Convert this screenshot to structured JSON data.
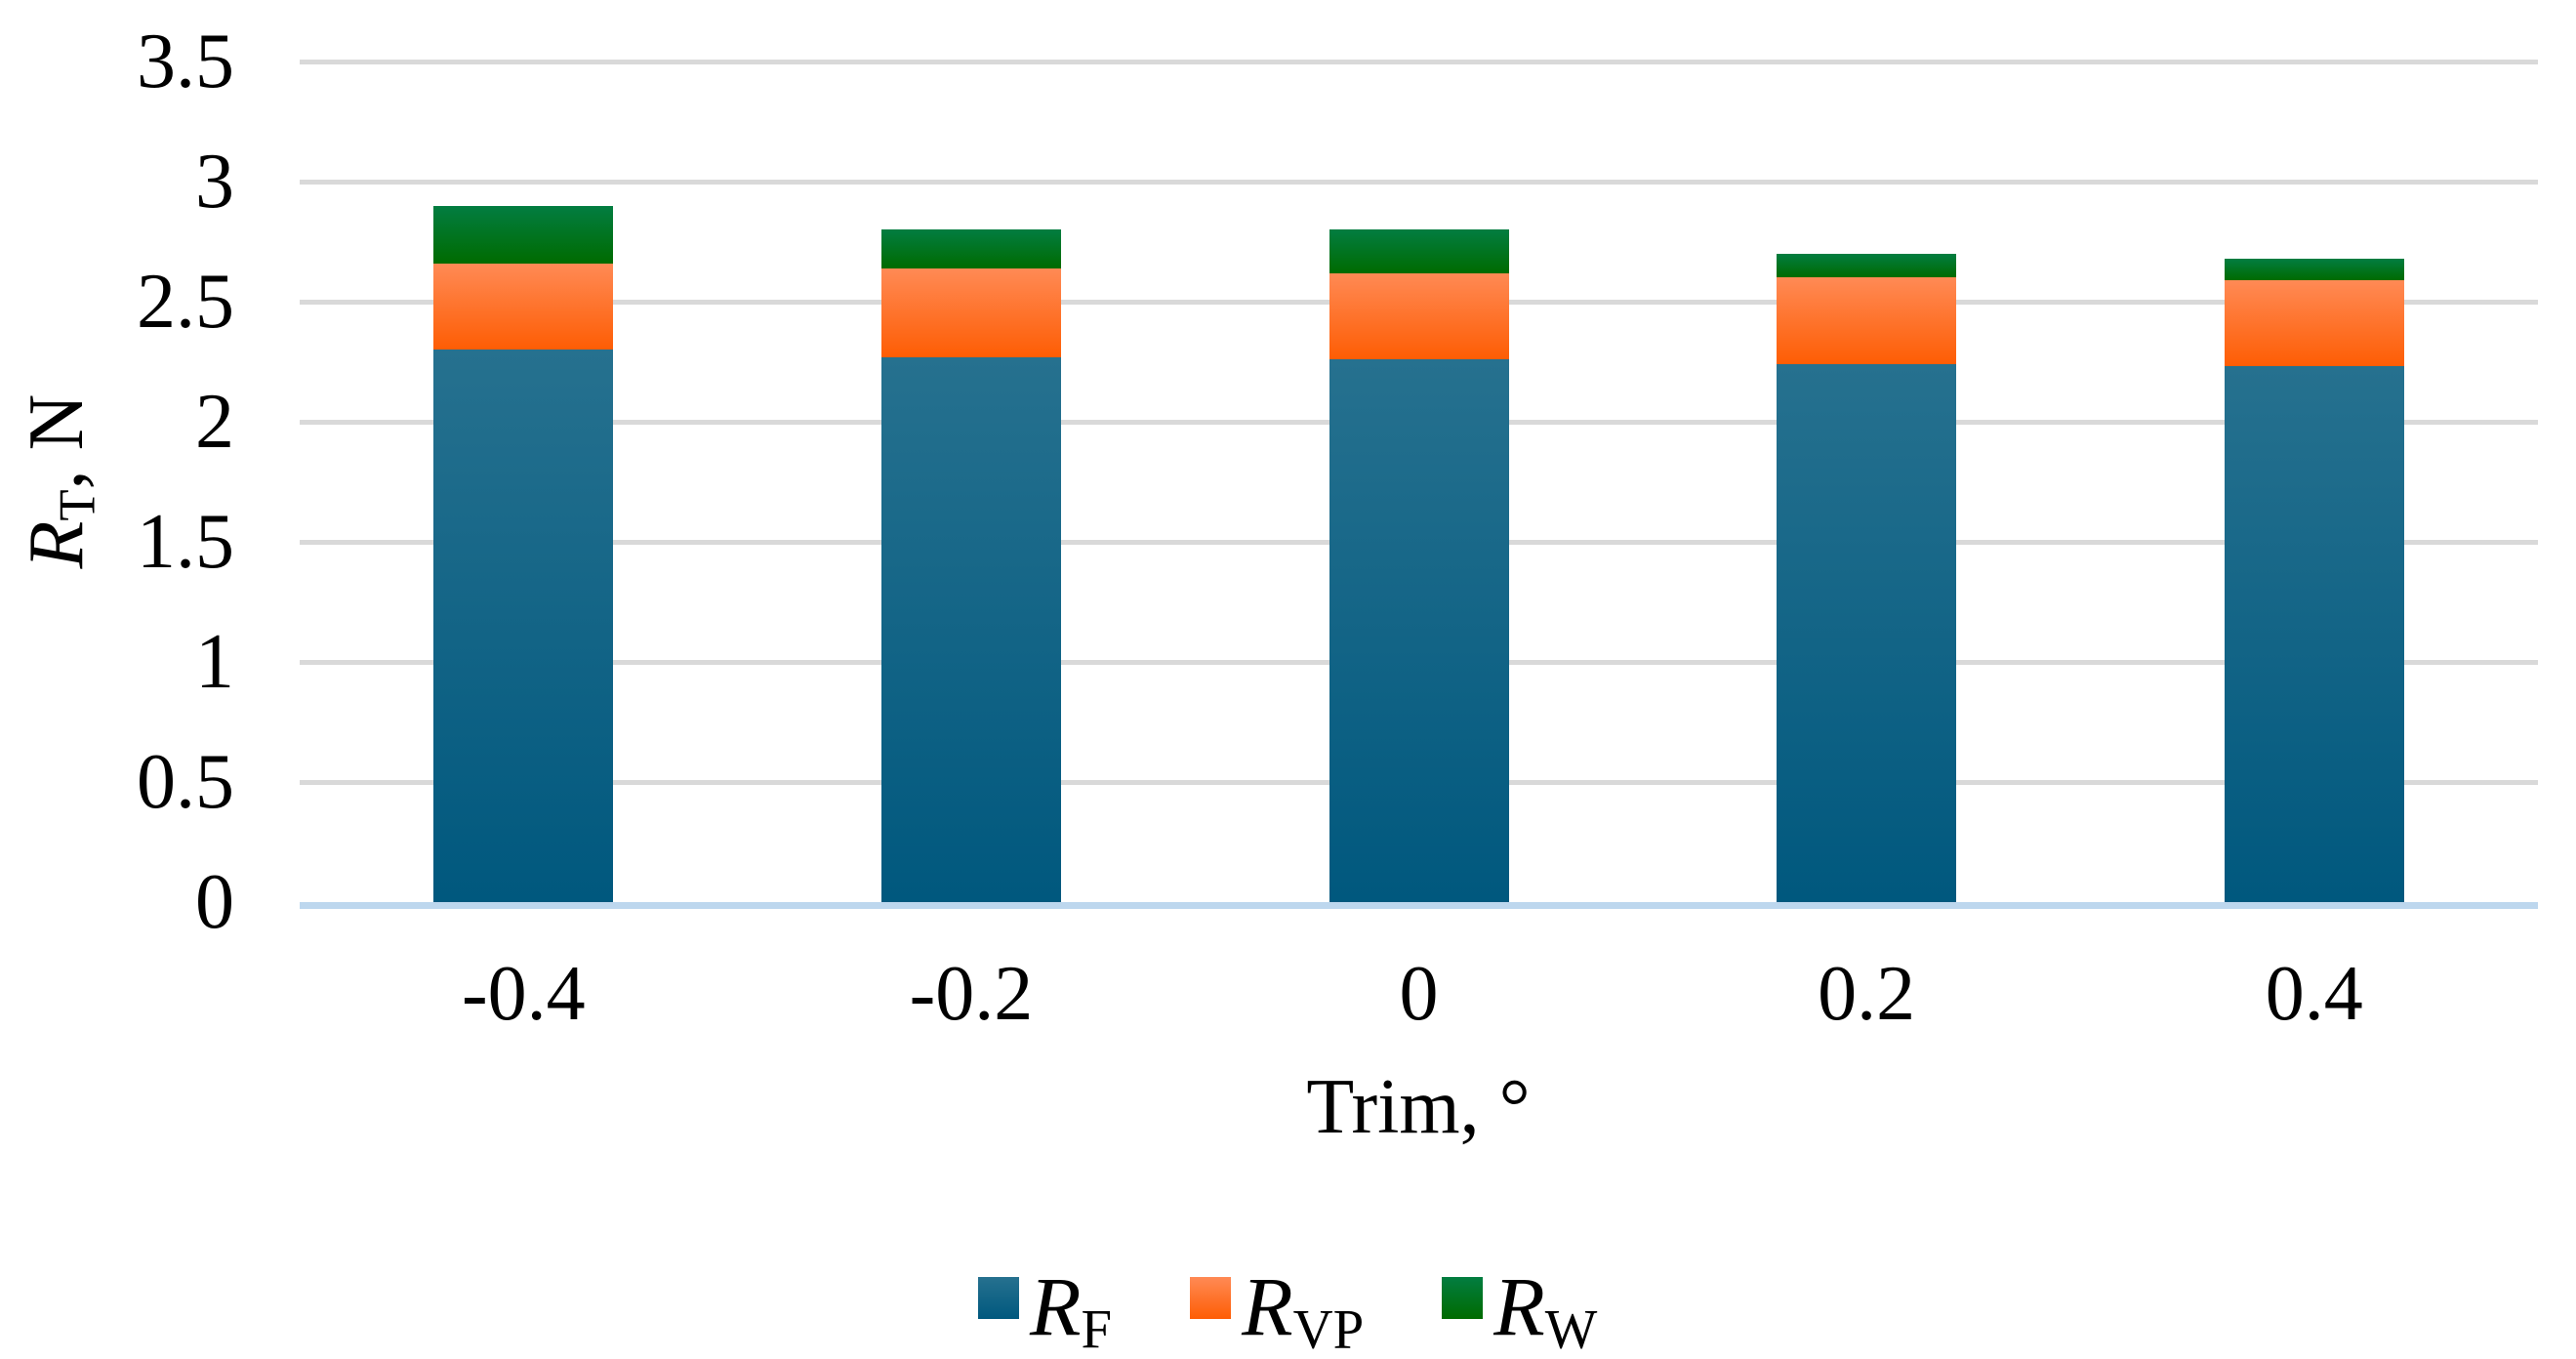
{
  "chart_data": {
    "type": "bar",
    "stacked": true,
    "title": "",
    "categories": [
      "-0.4",
      "-0.2",
      "0",
      "0.2",
      "0.4"
    ],
    "series": [
      {
        "name": "RF",
        "label_main": "R",
        "label_sub": "F",
        "values": [
          2.3,
          2.27,
          2.26,
          2.24,
          2.23
        ],
        "color_top": "#26718f",
        "color_bottom": "#00587e"
      },
      {
        "name": "RVP",
        "label_main": "R",
        "label_sub": "VP",
        "values": [
          0.36,
          0.37,
          0.36,
          0.36,
          0.36
        ],
        "color_top": "#ff8a55",
        "color_bottom": "#fe5d04"
      },
      {
        "name": "RW",
        "label_main": "R",
        "label_sub": "W",
        "values": [
          0.24,
          0.16,
          0.18,
          0.1,
          0.09
        ],
        "color_top": "#027d41",
        "color_bottom": "#006b00"
      }
    ],
    "stack_totals": [
      2.9,
      2.8,
      2.8,
      2.7,
      2.68
    ],
    "xlabel": "Trim, °",
    "ylabel": {
      "main": "R",
      "sub": "T",
      "rest": ", N"
    },
    "ylim": [
      0,
      3.5
    ],
    "ytick_step": 0.5,
    "ytick_labels": [
      "0",
      "0.5",
      "1",
      "1.5",
      "2",
      "2.5",
      "3",
      "3.5"
    ],
    "grid": "horizontal",
    "gridline_color": "#d9d9d9",
    "axisline_color": "#bdd7ee",
    "text_color": "#000000",
    "background_color": "#ffffff",
    "legend_position": "bottom"
  }
}
